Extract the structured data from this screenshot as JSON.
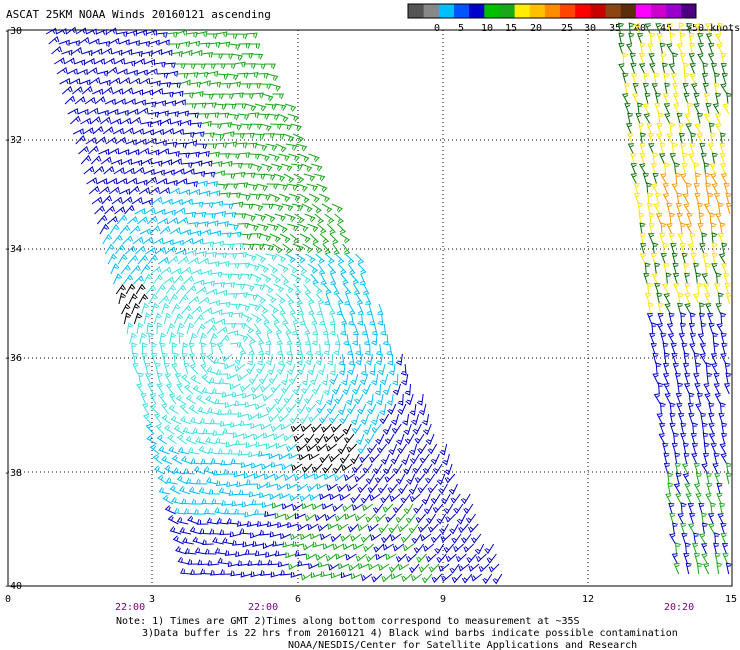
{
  "title": "ASCAT 25KM NOAA Winds 20160121 ascending",
  "legend": {
    "colors": [
      "#555555",
      "#888888",
      "#00bfff",
      "#0055ff",
      "#0000cc",
      "#00c000",
      "#19a819",
      "#ffee00",
      "#ffc000",
      "#ff8c00",
      "#ff4500",
      "#ff0000",
      "#c80000",
      "#8b4513",
      "#5a2d0c",
      "#ff00ff",
      "#cc00cc",
      "#9900cc",
      "#4b0082"
    ],
    "labels": [
      "0",
      "5",
      "10",
      "15",
      "20",
      "25",
      "30",
      "35",
      "40",
      "45",
      ">50 knots"
    ]
  },
  "axes": {
    "lat_labels": [
      "-30",
      "-32",
      "-34",
      "-36",
      "-38",
      "-40"
    ],
    "lon_labels": [
      "0",
      "3",
      "6",
      "9",
      "12",
      "15"
    ],
    "time_labels": [
      "22:00",
      "22:00",
      "20:20"
    ]
  },
  "notes": [
    "Note: 1) Times are GMT 2)Times along bottom correspond to measurement at ~35S",
    "3)Data buffer is 22 hrs from 20160121 4) Black wind barbs indicate possible contamination",
    "NOAA/NESDIS/Center for Satellite Applications and Research"
  ],
  "wind_colors": {
    "lt_blue": "#00bfff",
    "blue": "#0000cc",
    "mid_blue": "#1a53ff",
    "green": "#19a819",
    "dk_green": "#0a6e0a",
    "yellow": "#ffe600",
    "orange": "#ff9900",
    "cyan": "#40e0e0",
    "black": "#000000"
  }
}
